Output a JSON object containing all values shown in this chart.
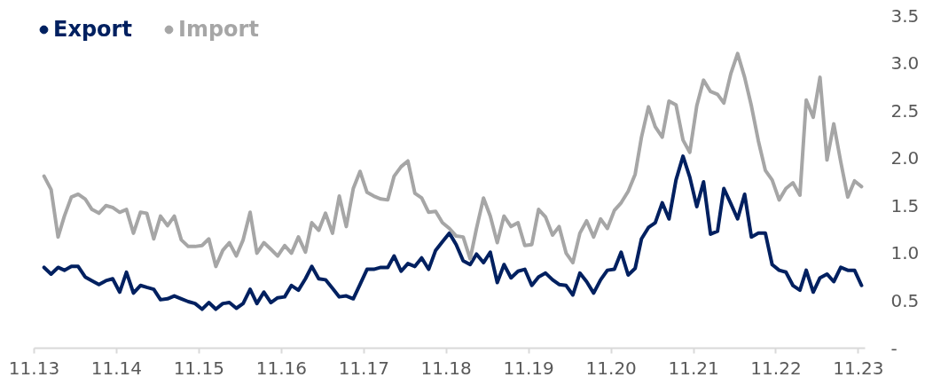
{
  "chart_data": {
    "type": "line",
    "legend": "top left",
    "grid": false,
    "x": [
      "2013-12-15",
      "2014-01-15",
      "2014-02-15",
      "2014-03-15",
      "2014-04-15",
      "2014-05-15",
      "2014-06-15",
      "2014-07-15",
      "2014-08-15",
      "2014-09-15",
      "2014-10-15",
      "2014-11-15",
      "2014-12-15",
      "2015-01-15",
      "2015-02-15",
      "2015-03-15",
      "2015-04-15",
      "2015-05-15",
      "2015-06-15",
      "2015-07-15",
      "2015-08-15",
      "2015-09-15",
      "2015-10-15",
      "2015-11-15",
      "2015-12-15",
      "2016-01-15",
      "2016-02-15",
      "2016-03-15",
      "2016-04-15",
      "2016-05-15",
      "2016-06-15",
      "2016-07-15",
      "2016-08-15",
      "2016-09-15",
      "2016-10-15",
      "2016-11-15",
      "2016-12-15",
      "2017-01-15",
      "2017-02-15",
      "2017-03-15",
      "2017-04-15",
      "2017-05-15",
      "2017-06-15",
      "2017-07-15",
      "2017-08-15",
      "2017-09-15",
      "2017-10-15",
      "2017-11-15",
      "2017-12-15",
      "2018-01-15",
      "2018-02-15",
      "2018-03-15",
      "2018-04-15",
      "2018-05-15",
      "2018-06-15",
      "2018-07-15",
      "2018-08-15",
      "2018-09-15",
      "2018-10-15",
      "2018-11-15",
      "2018-12-15",
      "2019-01-15",
      "2019-02-15",
      "2019-03-15",
      "2019-04-15",
      "2019-05-15",
      "2019-06-15",
      "2019-07-15",
      "2019-08-15",
      "2019-09-15",
      "2019-10-15",
      "2019-11-15",
      "2019-12-15",
      "2020-01-15",
      "2020-02-15",
      "2020-03-15",
      "2020-04-15",
      "2020-05-15",
      "2020-06-15",
      "2020-07-15",
      "2020-08-15",
      "2020-09-15",
      "2020-10-15",
      "2020-11-15",
      "2020-12-15",
      "2021-01-15",
      "2021-02-15",
      "2021-03-15",
      "2021-04-15",
      "2021-05-15",
      "2021-06-15",
      "2021-07-15",
      "2021-08-15",
      "2021-09-15",
      "2021-10-15",
      "2021-11-15",
      "2021-12-15",
      "2022-01-15",
      "2022-02-15",
      "2022-03-15",
      "2022-04-15",
      "2022-05-15",
      "2022-06-15",
      "2022-07-15",
      "2022-08-15",
      "2022-09-15",
      "2022-10-15",
      "2022-11-15",
      "2022-12-15",
      "2023-01-15",
      "2023-02-15",
      "2023-03-15",
      "2023-04-15",
      "2023-05-15",
      "2023-06-15",
      "2023-07-15",
      "2023-08-15",
      "2023-09-15",
      "2023-10-15",
      "2023-11-15"
    ],
    "xlim": [
      "2013-11",
      "2023-12"
    ],
    "xticks": [
      {
        "value": "2013-11",
        "label": "11.13"
      },
      {
        "value": "2014-11",
        "label": "11.14"
      },
      {
        "value": "2015-11",
        "label": "11.15"
      },
      {
        "value": "2016-11",
        "label": "11.16"
      },
      {
        "value": "2017-11",
        "label": "11.17"
      },
      {
        "value": "2018-11",
        "label": "11.18"
      },
      {
        "value": "2019-11",
        "label": "11.19"
      },
      {
        "value": "2020-11",
        "label": "11.20"
      },
      {
        "value": "2021-11",
        "label": "11.21"
      },
      {
        "value": "2022-11",
        "label": "11.22"
      },
      {
        "value": "2023-11",
        "label": "11.23"
      }
    ],
    "ylim": [
      0,
      3.5
    ],
    "yticks": [
      {
        "value": 0,
        "label": "-"
      },
      0.5,
      {
        "value": 1,
        "label": "1.0"
      },
      1.5,
      {
        "value": 2,
        "label": "2.0"
      },
      2.5,
      {
        "value": 3,
        "label": "3.0"
      },
      3.5
    ],
    "series": [
      {
        "name": "Export",
        "color": "#002060",
        "values": [
          0.85,
          0.78,
          0.85,
          0.82,
          0.86,
          0.86,
          0.75,
          0.71,
          0.67,
          0.71,
          0.73,
          0.59,
          0.8,
          0.58,
          0.66,
          0.64,
          0.62,
          0.51,
          0.52,
          0.55,
          0.52,
          0.49,
          0.47,
          0.41,
          0.48,
          0.41,
          0.47,
          0.48,
          0.42,
          0.47,
          0.62,
          0.47,
          0.59,
          0.48,
          0.53,
          0.54,
          0.66,
          0.61,
          0.73,
          0.86,
          0.73,
          0.72,
          0.63,
          0.54,
          0.55,
          0.52,
          0.67,
          0.83,
          0.83,
          0.85,
          0.85,
          0.97,
          0.81,
          0.89,
          0.86,
          0.95,
          0.83,
          1.03,
          1.12,
          1.21,
          1.09,
          0.92,
          0.88,
          0.99,
          0.9,
          1.01,
          0.69,
          0.88,
          0.74,
          0.81,
          0.83,
          0.66,
          0.75,
          0.79,
          0.72,
          0.67,
          0.66,
          0.56,
          0.79,
          0.7,
          0.58,
          0.72,
          0.82,
          0.83,
          1.01,
          0.77,
          0.84,
          1.15,
          1.27,
          1.32,
          1.53,
          1.36,
          1.77,
          2.02,
          1.8,
          1.49,
          1.75,
          1.2,
          1.23,
          1.68,
          1.52,
          1.36,
          1.62,
          1.17,
          1.21,
          1.21,
          0.88,
          0.82,
          0.8,
          0.66,
          0.61,
          0.82,
          0.59,
          0.74,
          0.78,
          0.7,
          0.85,
          0.82,
          0.82,
          0.66
        ]
      },
      {
        "name": "Import",
        "color": "#a6a6a6",
        "values": [
          1.81,
          1.67,
          1.17,
          1.39,
          1.59,
          1.62,
          1.57,
          1.46,
          1.42,
          1.5,
          1.48,
          1.43,
          1.46,
          1.21,
          1.43,
          1.42,
          1.15,
          1.39,
          1.29,
          1.39,
          1.14,
          1.07,
          1.07,
          1.08,
          1.15,
          0.86,
          1.03,
          1.11,
          0.97,
          1.14,
          1.43,
          1.0,
          1.11,
          1.04,
          0.97,
          1.08,
          1.0,
          1.17,
          1.01,
          1.32,
          1.24,
          1.42,
          1.21,
          1.6,
          1.28,
          1.68,
          1.86,
          1.64,
          1.6,
          1.57,
          1.56,
          1.81,
          1.91,
          1.97,
          1.63,
          1.58,
          1.43,
          1.44,
          1.32,
          1.26,
          1.18,
          1.17,
          0.94,
          1.26,
          1.58,
          1.39,
          1.11,
          1.39,
          1.28,
          1.32,
          1.08,
          1.09,
          1.46,
          1.38,
          1.19,
          1.28,
          1.0,
          0.9,
          1.21,
          1.34,
          1.17,
          1.36,
          1.26,
          1.45,
          1.53,
          1.65,
          1.83,
          2.22,
          2.54,
          2.33,
          2.22,
          2.6,
          2.56,
          2.19,
          2.06,
          2.55,
          2.82,
          2.7,
          2.67,
          2.58,
          2.89,
          3.1,
          2.85,
          2.55,
          2.18,
          1.87,
          1.77,
          1.56,
          1.68,
          1.74,
          1.61,
          2.61,
          2.43,
          2.85,
          1.98,
          2.36,
          1.96,
          1.59,
          1.76,
          1.7
        ]
      }
    ]
  }
}
